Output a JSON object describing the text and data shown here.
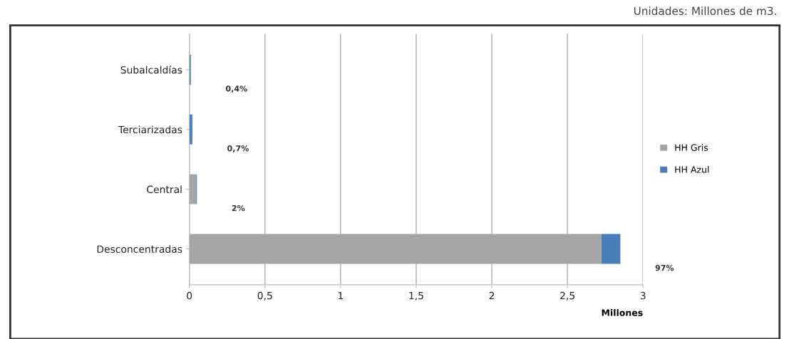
{
  "chart_data": {
    "type": "bar",
    "orientation": "horizontal",
    "stacked": true,
    "categories": [
      "Subalcaldías",
      "Terciarizadas",
      "Central",
      "Desconcentradas"
    ],
    "series": [
      {
        "name": "HH Gris",
        "color": "#a5a5a5",
        "values": [
          0,
          0,
          0.045,
          2.725
        ]
      },
      {
        "name": "HH Azul",
        "color": "#4a7ebb",
        "values": [
          0.01,
          0.02,
          0.005,
          0.125
        ]
      }
    ],
    "xlim": [
      0,
      3
    ],
    "xticks": [
      0,
      {
        "value": 0.5,
        "label": "0,5"
      },
      1,
      {
        "value": 1.5,
        "label": "1,5"
      },
      2,
      {
        "value": 2.5,
        "label": "2,5"
      },
      3
    ],
    "xlabel": "Millones",
    "grid": "x",
    "legend": "right",
    "annotations": [
      "Unidades: Millones de m3.",
      "0,4%",
      "0,7%",
      "2%",
      "97%"
    ]
  }
}
